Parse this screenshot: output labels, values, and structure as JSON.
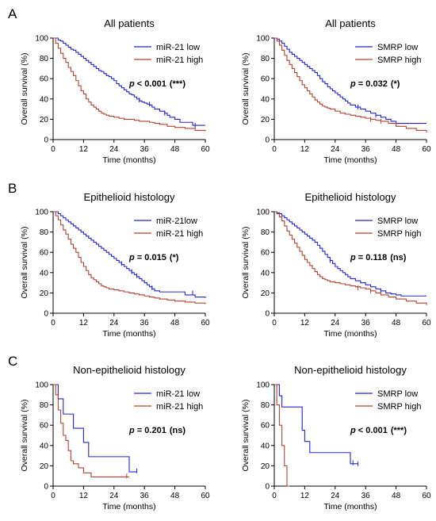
{
  "figure": {
    "colors": {
      "low": "#2323d6",
      "high": "#b5412e",
      "axis": "#000000"
    },
    "panel_letters": [
      "A",
      "B",
      "C"
    ]
  },
  "chart_data": [
    {
      "type": "line",
      "title": "All patients",
      "xlabel": "Time (months)",
      "ylabel": "Overall survival (%)",
      "xlim": [
        0,
        60
      ],
      "ylim": [
        0,
        100
      ],
      "xticks": [
        0,
        12,
        24,
        36,
        48,
        60
      ],
      "yticks": [
        0,
        20,
        40,
        60,
        80,
        100
      ],
      "legend_position": "top-right",
      "annotation": {
        "pvalue": "0.001",
        "stars": "(***)",
        "op": "<"
      },
      "series": [
        {
          "name": "miR-21 low",
          "role": "low",
          "x": [
            0,
            1,
            2,
            3,
            4,
            5,
            6,
            7,
            8,
            9,
            10,
            11,
            12,
            13,
            14,
            15,
            16,
            17,
            18,
            19,
            20,
            21,
            22,
            23,
            24,
            25,
            26,
            27,
            28,
            29,
            30,
            31,
            32,
            33,
            34,
            35,
            36,
            37,
            38,
            39,
            40,
            42,
            44,
            45,
            46,
            48,
            50,
            55,
            60
          ],
          "y": [
            100,
            100,
            98,
            97,
            95,
            93,
            91,
            89,
            88,
            86,
            84,
            82,
            80,
            78,
            76,
            74,
            72,
            70,
            68,
            67,
            65,
            63,
            62,
            60,
            58,
            55,
            53,
            51,
            49,
            47,
            45,
            44,
            42,
            40,
            38,
            37,
            36,
            35,
            34,
            32,
            30,
            28,
            26,
            24,
            22,
            20,
            17,
            14,
            14
          ],
          "censor": [
            [
              34,
              39
            ],
            [
              38,
              35
            ],
            [
              44,
              26
            ],
            [
              56,
              14
            ]
          ]
        },
        {
          "name": "miR-21 high",
          "role": "high",
          "x": [
            0,
            1,
            2,
            3,
            4,
            5,
            6,
            7,
            8,
            9,
            10,
            11,
            12,
            13,
            14,
            15,
            16,
            17,
            18,
            19,
            20,
            21,
            22,
            24,
            26,
            28,
            30,
            32,
            34,
            36,
            38,
            40,
            42,
            45,
            48,
            52,
            56,
            60
          ],
          "y": [
            100,
            95,
            90,
            85,
            80,
            76,
            71,
            67,
            63,
            58,
            53,
            48,
            45,
            40,
            37,
            34,
            32,
            30,
            28,
            26,
            25,
            24,
            23,
            22,
            21,
            20,
            20,
            19,
            18,
            18,
            17,
            16,
            15,
            13,
            12,
            11,
            9,
            8
          ],
          "censor": []
        }
      ]
    },
    {
      "type": "line",
      "title": "All patients",
      "xlabel": "Time (months)",
      "ylabel": "Overall survival (%)",
      "xlim": [
        0,
        60
      ],
      "ylim": [
        0,
        100
      ],
      "xticks": [
        0,
        12,
        24,
        36,
        48,
        60
      ],
      "yticks": [
        0,
        20,
        40,
        60,
        80,
        100
      ],
      "legend_position": "top-right",
      "annotation": {
        "pvalue": "0.032",
        "stars": "(*)",
        "op": "="
      },
      "series": [
        {
          "name": "SMRP low",
          "role": "low",
          "x": [
            0,
            1,
            2,
            3,
            4,
            5,
            6,
            7,
            8,
            9,
            10,
            11,
            12,
            13,
            14,
            15,
            16,
            17,
            18,
            19,
            20,
            21,
            22,
            23,
            24,
            25,
            26,
            27,
            28,
            29,
            30,
            32,
            34,
            36,
            38,
            40,
            42,
            44,
            46,
            48,
            50,
            55,
            60
          ],
          "y": [
            100,
            99,
            97,
            95,
            92,
            89,
            86,
            84,
            82,
            80,
            78,
            76,
            74,
            72,
            70,
            68,
            66,
            63,
            60,
            57,
            55,
            52,
            50,
            48,
            46,
            44,
            42,
            40,
            38,
            36,
            34,
            32,
            30,
            28,
            26,
            24,
            22,
            20,
            18,
            16,
            16,
            16,
            16
          ],
          "censor": [
            [
              33,
              32
            ],
            [
              40,
              24
            ]
          ]
        },
        {
          "name": "SMRP high",
          "role": "high",
          "x": [
            0,
            1,
            2,
            3,
            4,
            5,
            6,
            7,
            8,
            9,
            10,
            11,
            12,
            13,
            14,
            15,
            16,
            17,
            18,
            19,
            20,
            21,
            22,
            24,
            26,
            28,
            30,
            32,
            34,
            36,
            38,
            40,
            42,
            45,
            48,
            52,
            56,
            60
          ],
          "y": [
            100,
            97,
            93,
            88,
            83,
            78,
            74,
            70,
            66,
            62,
            58,
            54,
            51,
            48,
            45,
            42,
            39,
            37,
            35,
            33,
            32,
            31,
            30,
            28,
            26,
            25,
            24,
            23,
            22,
            21,
            20,
            19,
            18,
            16,
            13,
            11,
            9,
            7
          ],
          "censor": [
            [
              38,
              20
            ],
            [
              42,
              18
            ]
          ]
        }
      ]
    },
    {
      "type": "line",
      "title": "Epithelioid histology",
      "xlabel": "Time (months)",
      "ylabel": "Overall survival (%)",
      "xlim": [
        0,
        60
      ],
      "ylim": [
        0,
        100
      ],
      "xticks": [
        0,
        12,
        24,
        36,
        48,
        60
      ],
      "yticks": [
        0,
        20,
        40,
        60,
        80,
        100
      ],
      "legend_position": "top-right",
      "annotation": {
        "pvalue": "0.015",
        "stars": "(*)",
        "op": "="
      },
      "series": [
        {
          "name": "miR-21low",
          "role": "low",
          "x": [
            0,
            1,
            2,
            3,
            4,
            5,
            6,
            7,
            8,
            9,
            10,
            11,
            12,
            13,
            14,
            15,
            16,
            17,
            18,
            19,
            20,
            21,
            22,
            23,
            24,
            25,
            26,
            27,
            28,
            29,
            30,
            31,
            32,
            33,
            34,
            35,
            36,
            37,
            38,
            39,
            40,
            42,
            44,
            46,
            48,
            52,
            56,
            60
          ],
          "y": [
            100,
            100,
            98,
            96,
            94,
            92,
            90,
            88,
            86,
            84,
            82,
            80,
            78,
            76,
            74,
            72,
            70,
            68,
            66,
            64,
            62,
            60,
            58,
            56,
            54,
            52,
            50,
            48,
            46,
            44,
            42,
            40,
            38,
            36,
            34,
            32,
            30,
            28,
            26,
            24,
            22,
            21,
            21,
            21,
            21,
            18,
            16,
            15
          ],
          "censor": [
            [
              27,
              49
            ],
            [
              31,
              41
            ],
            [
              33,
              37
            ],
            [
              39,
              25
            ],
            [
              55,
              20
            ]
          ]
        },
        {
          "name": "miR-21 high",
          "role": "high",
          "x": [
            0,
            1,
            2,
            3,
            4,
            5,
            6,
            7,
            8,
            9,
            10,
            11,
            12,
            13,
            14,
            15,
            16,
            17,
            18,
            19,
            20,
            21,
            22,
            24,
            26,
            28,
            30,
            32,
            34,
            36,
            38,
            40,
            42,
            45,
            48,
            52,
            56,
            60
          ],
          "y": [
            100,
            96,
            92,
            87,
            82,
            78,
            73,
            68,
            64,
            60,
            55,
            50,
            46,
            42,
            38,
            35,
            33,
            31,
            29,
            27,
            26,
            25,
            24,
            23,
            22,
            21,
            20,
            19,
            18,
            17,
            16,
            15,
            14,
            13,
            12,
            11,
            10,
            9
          ],
          "censor": []
        }
      ]
    },
    {
      "type": "line",
      "title": "Epithelioid histology",
      "xlabel": "Time (months)",
      "ylabel": "Overall survival (%)",
      "xlim": [
        0,
        60
      ],
      "ylim": [
        0,
        100
      ],
      "xticks": [
        0,
        12,
        24,
        36,
        48,
        60
      ],
      "yticks": [
        0,
        20,
        40,
        60,
        80,
        100
      ],
      "legend_position": "top-right",
      "annotation": {
        "pvalue": "0.118",
        "stars": "(ns)",
        "op": "="
      },
      "series": [
        {
          "name": "SMRP low",
          "role": "low",
          "x": [
            0,
            1,
            2,
            3,
            4,
            5,
            6,
            7,
            8,
            9,
            10,
            11,
            12,
            13,
            14,
            15,
            16,
            17,
            18,
            19,
            20,
            21,
            22,
            23,
            24,
            25,
            26,
            27,
            28,
            29,
            30,
            32,
            34,
            36,
            38,
            40,
            42,
            44,
            46,
            48,
            50,
            55,
            60
          ],
          "y": [
            100,
            99,
            98,
            96,
            94,
            92,
            90,
            88,
            86,
            84,
            82,
            80,
            78,
            76,
            74,
            72,
            70,
            67,
            64,
            61,
            58,
            55,
            52,
            49,
            46,
            44,
            42,
            40,
            38,
            36,
            34,
            32,
            30,
            28,
            26,
            24,
            22,
            20,
            19,
            18,
            17,
            17,
            17
          ],
          "censor": [
            [
              22,
              52
            ],
            [
              42,
              22
            ]
          ]
        },
        {
          "name": "SMRP high",
          "role": "high",
          "x": [
            0,
            1,
            2,
            3,
            4,
            5,
            6,
            7,
            8,
            9,
            10,
            11,
            12,
            13,
            14,
            15,
            16,
            17,
            18,
            19,
            20,
            21,
            22,
            24,
            26,
            28,
            30,
            32,
            34,
            36,
            38,
            40,
            42,
            45,
            48,
            52,
            56,
            60
          ],
          "y": [
            100,
            98,
            95,
            91,
            86,
            81,
            77,
            73,
            69,
            65,
            61,
            57,
            53,
            50,
            47,
            44,
            41,
            38,
            36,
            34,
            33,
            32,
            31,
            30,
            29,
            28,
            27,
            26,
            25,
            24,
            22,
            20,
            18,
            16,
            14,
            12,
            10,
            8
          ],
          "censor": [
            [
              33,
              25
            ],
            [
              38,
              22
            ]
          ]
        }
      ]
    },
    {
      "type": "line",
      "title": "Non-epithelioid histology",
      "xlabel": "Time (months)",
      "ylabel": "Overall survival (%)",
      "xlim": [
        0,
        60
      ],
      "ylim": [
        0,
        100
      ],
      "xticks": [
        0,
        12,
        24,
        36,
        48,
        60
      ],
      "yticks": [
        0,
        20,
        40,
        60,
        80,
        100
      ],
      "legend_position": "top-right",
      "annotation": {
        "pvalue": "0.201",
        "stars": "(ns)",
        "op": "="
      },
      "series": [
        {
          "name": "miR-21 low",
          "role": "low",
          "x": [
            0,
            2,
            4,
            6,
            8,
            10,
            12,
            14,
            29,
            30,
            33
          ],
          "y": [
            100,
            86,
            71,
            71,
            57,
            57,
            43,
            29,
            29,
            14,
            14
          ],
          "censor": [
            [
              33,
              15
            ]
          ]
        },
        {
          "name": "miR-21 high",
          "role": "high",
          "x": [
            0,
            1,
            2,
            3,
            4,
            5,
            6,
            7,
            8,
            10,
            12,
            15,
            30
          ],
          "y": [
            100,
            90,
            75,
            62,
            50,
            45,
            35,
            25,
            22,
            18,
            13,
            9,
            9
          ],
          "censor": [
            [
              29,
              10
            ]
          ]
        }
      ]
    },
    {
      "type": "line",
      "title": "Non-epithelioid histology",
      "xlabel": "Time (months)",
      "ylabel": "Overall survival (%)",
      "xlim": [
        0,
        60
      ],
      "ylim": [
        0,
        100
      ],
      "xticks": [
        0,
        12,
        24,
        36,
        48,
        60
      ],
      "yticks": [
        0,
        20,
        40,
        60,
        80,
        100
      ],
      "legend_position": "top-right",
      "annotation": {
        "pvalue": "0.001",
        "stars": "(***)",
        "op": "<"
      },
      "series": [
        {
          "name": "SMRP low",
          "role": "low",
          "x": [
            0,
            2,
            3,
            10,
            11,
            12,
            14,
            29,
            30,
            33
          ],
          "y": [
            100,
            89,
            78,
            78,
            55,
            44,
            33,
            33,
            22,
            22
          ],
          "censor": [
            [
              31,
              23
            ],
            [
              33,
              22
            ]
          ]
        },
        {
          "name": "SMRP high",
          "role": "high",
          "x": [
            0,
            1,
            2,
            3,
            4,
            5,
            6
          ],
          "y": [
            100,
            80,
            60,
            40,
            20,
            0,
            0
          ],
          "censor": []
        }
      ]
    }
  ]
}
